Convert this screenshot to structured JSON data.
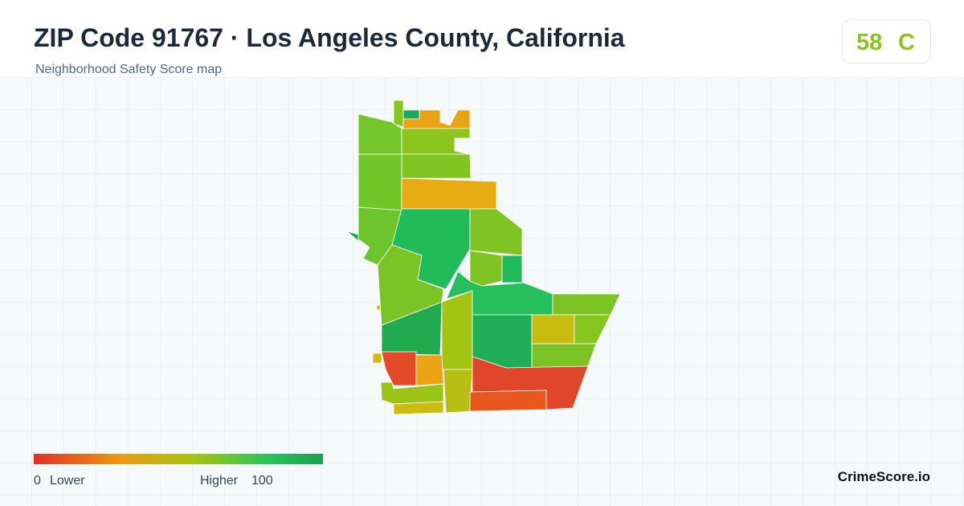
{
  "header": {
    "title": "ZIP Code 91767 · Los Angeles County, California",
    "subtitle": "Neighborhood Safety Score map"
  },
  "score": {
    "value": 58,
    "grade": "C"
  },
  "legend": {
    "min": 0,
    "min_label": "Lower",
    "max_label": "Higher",
    "max": 100
  },
  "brand": "CrimeScore.io"
}
